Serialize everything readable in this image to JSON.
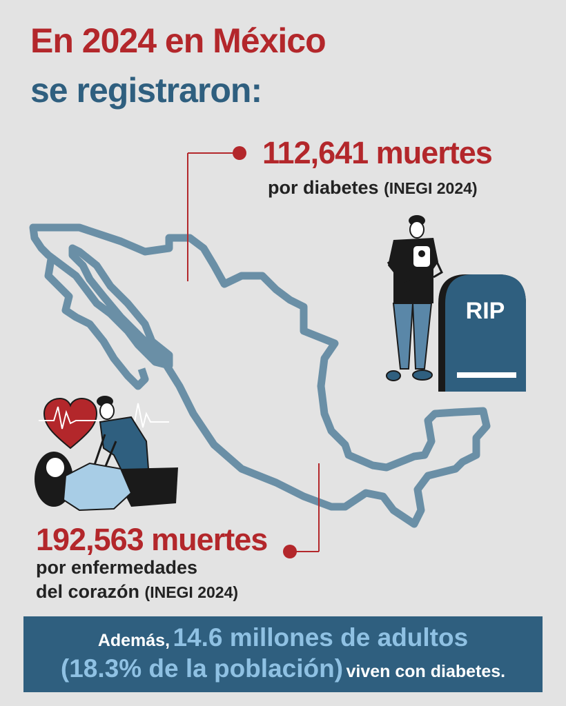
{
  "title": {
    "line1": "En 2024 en México",
    "line2": "se registraron:"
  },
  "stat_diabetes": {
    "number": "112,641 muertes",
    "label": "por diabetes",
    "source": "(INEGI 2024)"
  },
  "stat_heart": {
    "number": "192,563 muertes",
    "label_line1": "por enfermedades",
    "label_line2": "del corazón",
    "source": "(INEGI 2024)"
  },
  "illustration": {
    "tombstone_text": "RIP",
    "icons": [
      "mexico-map-outline",
      "person-holding-photo",
      "tombstone",
      "heart-ekg",
      "cpr-scene"
    ]
  },
  "banner": {
    "part1": "Además,",
    "part2": "14.6 millones de adultos",
    "part3": "(18.3% de la población)",
    "part4": "viven con diabetes."
  },
  "colors": {
    "background": "#e3e3e3",
    "red": "#b3272b",
    "blue": "#2f5f7f",
    "map_outline": "#6a8fa6",
    "light_blue": "#8fc1e3"
  }
}
